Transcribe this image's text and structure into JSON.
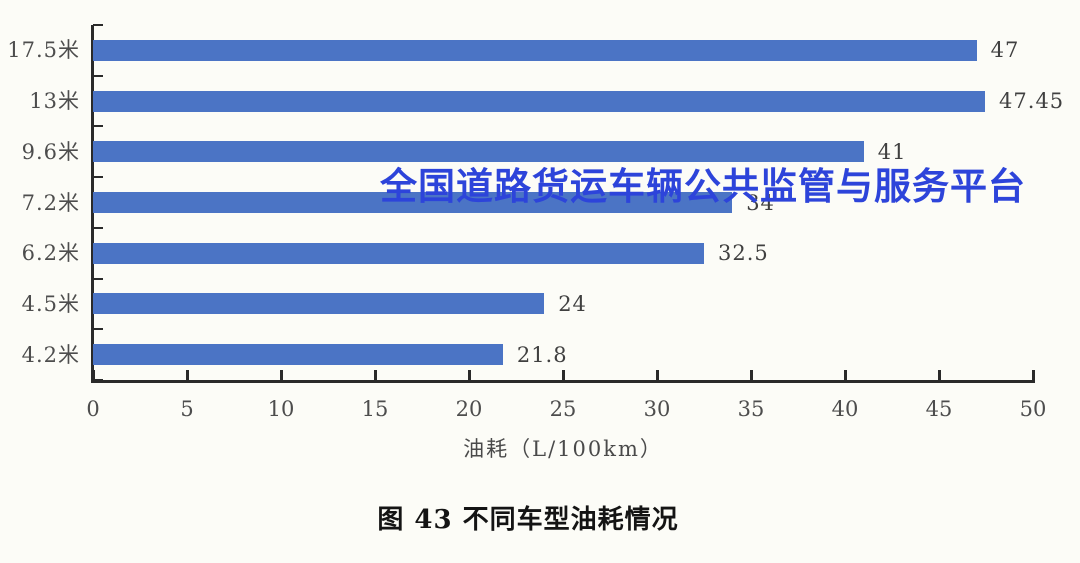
{
  "figure": {
    "caption": "图 43 不同车型油耗情况",
    "watermark": "全国道路货运车辆公共监管与服务平台",
    "watermark_color": "#2d44da",
    "background_color": "#fcfcf7"
  },
  "chart_data": {
    "type": "bar",
    "orientation": "horizontal",
    "title": "图 43 不同车型油耗情况",
    "categories": [
      "17.5米",
      "13米",
      "9.6米",
      "7.2米",
      "6.2米",
      "4.5米",
      "4.2米"
    ],
    "values": [
      47,
      47.45,
      41,
      34,
      32.5,
      24,
      21.8
    ],
    "value_labels": [
      "47",
      "47.45",
      "41",
      "34",
      "32.5",
      "24",
      "21.8"
    ],
    "xlabel": "油耗（L/100km）",
    "ylabel": "",
    "xlim": [
      0,
      50
    ],
    "xticks": [
      0,
      5,
      10,
      15,
      20,
      25,
      30,
      35,
      40,
      45,
      50
    ],
    "grid": false,
    "legend": null,
    "bar_color": "#4b74c5",
    "axis_color": "#2a2a2a",
    "label_color": "#4d4d4d"
  }
}
